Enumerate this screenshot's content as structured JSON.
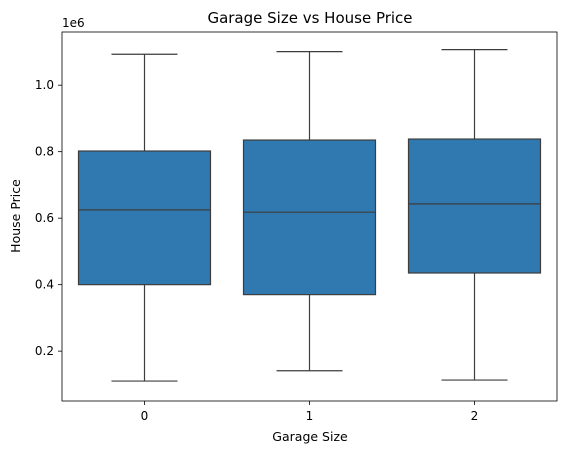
{
  "chart_data": {
    "type": "box",
    "title": "Garage Size vs House Price",
    "xlabel": "Garage Size",
    "ylabel": "House Price",
    "y_offset_label": "1e6",
    "y_scale": 1000000,
    "ylim": [
      50000,
      1160000
    ],
    "yticks": [
      200000,
      400000,
      600000,
      800000,
      1000000
    ],
    "ytick_labels": [
      "0.2",
      "0.4",
      "0.6",
      "0.8",
      "1.0"
    ],
    "categories": [
      "0",
      "1",
      "2"
    ],
    "series": [
      {
        "boxes": [
          {
            "category": "0",
            "whisker_low": 110000,
            "q1": 400000,
            "median": 625000,
            "q3": 802000,
            "whisker_high": 1093000
          },
          {
            "category": "1",
            "whisker_low": 141000,
            "q1": 370000,
            "median": 618000,
            "q3": 835000,
            "whisker_high": 1101000
          },
          {
            "category": "2",
            "whisker_low": 113000,
            "q1": 435000,
            "median": 643000,
            "q3": 838000,
            "whisker_high": 1107000
          }
        ]
      }
    ],
    "box_color": "#2f78b0",
    "line_color": "#3d3d3d",
    "grid": false,
    "legend": "none"
  }
}
